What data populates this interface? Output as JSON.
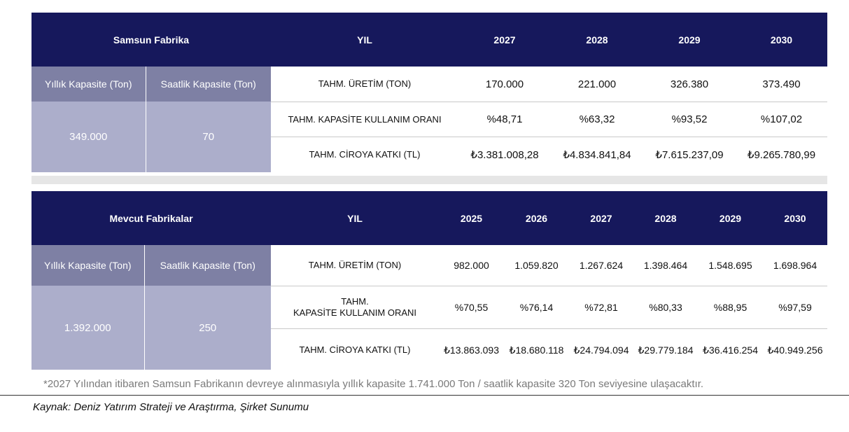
{
  "samsun": {
    "title": "Samsun Fabrika",
    "yil_label": "YIL",
    "years": [
      "2027",
      "2028",
      "2029",
      "2030"
    ],
    "annual_capacity_label": "Yıllık Kapasite (Ton)",
    "hourly_capacity_label": "Saatlik Kapasite (Ton)",
    "annual_capacity_value": "349.000",
    "hourly_capacity_value": "70",
    "rows": [
      {
        "label": "TAHM. ÜRETİM (TON)",
        "values": [
          "170.000",
          "221.000",
          "326.380",
          "373.490"
        ]
      },
      {
        "label": "TAHM. KAPASİTE KULLANIM ORANI",
        "values": [
          "%48,71",
          "%63,32",
          "%93,52",
          "%107,02"
        ]
      },
      {
        "label": "TAHM. CİROYA KATKI (TL)",
        "values": [
          "₺3.381.008,28",
          "₺4.834.841,84",
          "₺7.615.237,09",
          "₺9.265.780,99"
        ]
      }
    ]
  },
  "mevcut": {
    "title": "Mevcut Fabrikalar",
    "yil_label": "YIL",
    "years": [
      "2025",
      "2026",
      "2027",
      "2028",
      "2029",
      "2030"
    ],
    "annual_capacity_label": "Yıllık Kapasite (Ton)",
    "hourly_capacity_label": "Saatlik Kapasite (Ton)",
    "annual_capacity_value": "1.392.000",
    "hourly_capacity_value": "250",
    "rows": [
      {
        "label": "TAHM. ÜRETİM (TON)",
        "label2": "",
        "values": [
          "982.000",
          "1.059.820",
          "1.267.624",
          "1.398.464",
          "1.548.695",
          "1.698.964"
        ]
      },
      {
        "label": "TAHM.",
        "label2": "KAPASİTE KULLANIM ORANI",
        "values": [
          "%70,55",
          "%76,14",
          "%72,81",
          "%80,33",
          "%88,95",
          "%97,59"
        ]
      },
      {
        "label": "TAHM. CİROYA KATKI (TL)",
        "label2": "",
        "values": [
          "₺13.863.093",
          "₺18.680.118",
          "₺24.794.094",
          "₺29.779.184",
          "₺36.416.254",
          "₺40.949.256"
        ]
      }
    ]
  },
  "footnote": "*2027 Yılından itibaren Samsun Fabrikanın devreye alınmasıyla yıllık kapasite 1.741.000 Ton / saatlik kapasite 320 Ton seviyesine ulaşacaktır.",
  "source": "Kaynak: Deniz Yatırım Strateji ve Araştırma, Şirket Sunumu",
  "colors": {
    "header": "#16185c",
    "capacity_label": "#7e80a4",
    "capacity_value": "#acaecb",
    "band": "#e6e6e6"
  }
}
